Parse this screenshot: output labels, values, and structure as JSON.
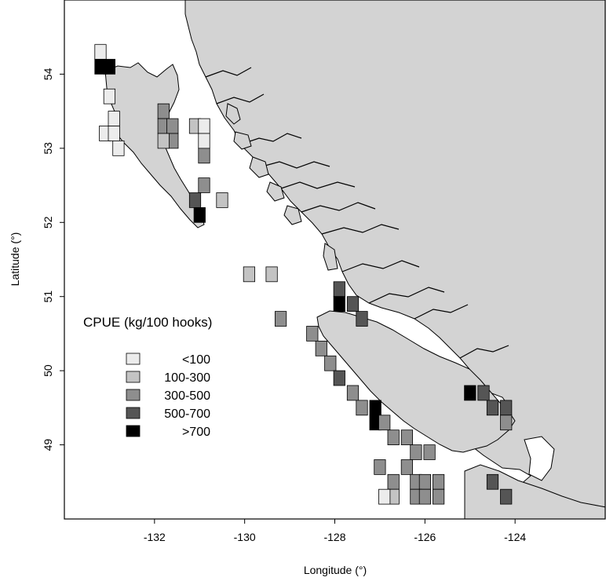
{
  "map": {
    "x_axis_title": "Longitude (°)",
    "y_axis_title": "Latitude (°)",
    "x_ticks": [
      {
        "value": -132,
        "label": "-132"
      },
      {
        "value": -130,
        "label": "-130"
      },
      {
        "value": -128,
        "label": "-128"
      },
      {
        "value": -126,
        "label": "-126"
      },
      {
        "value": -124,
        "label": "-124"
      }
    ],
    "y_ticks": [
      {
        "value": 54,
        "label": "54"
      },
      {
        "value": 53,
        "label": "53"
      },
      {
        "value": 52,
        "label": "52"
      },
      {
        "value": 51,
        "label": "51"
      },
      {
        "value": 50,
        "label": "50"
      },
      {
        "value": 49,
        "label": "49"
      }
    ],
    "land_color": "#d3d3d3",
    "water_color": "#ffffff",
    "legend": {
      "title": "CPUE (kg/100 hooks)",
      "items": [
        {
          "label": "<100",
          "color": "#ececec"
        },
        {
          "label": "100-300",
          "color": "#c3c3c3"
        },
        {
          "label": "300-500",
          "color": "#8e8e8e"
        },
        {
          "label": "500-700",
          "color": "#555555"
        },
        {
          "label": ">700",
          "color": "#000000"
        }
      ]
    }
  },
  "chart_data": {
    "type": "heatmap",
    "xlabel": "Longitude (°)",
    "ylabel": "Latitude (°)",
    "xlim": [
      -134,
      -122
    ],
    "ylim": [
      48,
      55
    ],
    "cell_size_deg": 0.25,
    "value_field": "cpue_class",
    "classes": [
      "<100",
      "100-300",
      "300-500",
      "500-700",
      ">700"
    ],
    "cells": [
      {
        "lon": -133.2,
        "lat": 54.3,
        "cpue_class": "<100"
      },
      {
        "lon": -133.2,
        "lat": 54.1,
        "cpue_class": ">700"
      },
      {
        "lon": -133.0,
        "lat": 54.1,
        "cpue_class": ">700"
      },
      {
        "lon": -133.0,
        "lat": 53.7,
        "cpue_class": "<100"
      },
      {
        "lon": -132.9,
        "lat": 53.4,
        "cpue_class": "<100"
      },
      {
        "lon": -133.1,
        "lat": 53.2,
        "cpue_class": "<100"
      },
      {
        "lon": -132.9,
        "lat": 53.2,
        "cpue_class": "<100"
      },
      {
        "lon": -132.8,
        "lat": 53.0,
        "cpue_class": "<100"
      },
      {
        "lon": -131.8,
        "lat": 53.5,
        "cpue_class": "300-500"
      },
      {
        "lon": -131.8,
        "lat": 53.3,
        "cpue_class": "300-500"
      },
      {
        "lon": -131.6,
        "lat": 53.3,
        "cpue_class": "300-500"
      },
      {
        "lon": -131.6,
        "lat": 53.1,
        "cpue_class": "300-500"
      },
      {
        "lon": -131.8,
        "lat": 53.1,
        "cpue_class": "100-300"
      },
      {
        "lon": -131.1,
        "lat": 53.3,
        "cpue_class": "100-300"
      },
      {
        "lon": -130.9,
        "lat": 53.3,
        "cpue_class": "<100"
      },
      {
        "lon": -130.9,
        "lat": 53.1,
        "cpue_class": "<100"
      },
      {
        "lon": -130.9,
        "lat": 52.9,
        "cpue_class": "300-500"
      },
      {
        "lon": -130.9,
        "lat": 52.5,
        "cpue_class": "300-500"
      },
      {
        "lon": -131.1,
        "lat": 52.3,
        "cpue_class": "500-700"
      },
      {
        "lon": -131.0,
        "lat": 52.1,
        "cpue_class": ">700"
      },
      {
        "lon": -130.5,
        "lat": 52.3,
        "cpue_class": "100-300"
      },
      {
        "lon": -129.9,
        "lat": 51.3,
        "cpue_class": "100-300"
      },
      {
        "lon": -129.4,
        "lat": 51.3,
        "cpue_class": "100-300"
      },
      {
        "lon": -129.2,
        "lat": 50.7,
        "cpue_class": "300-500"
      },
      {
        "lon": -127.9,
        "lat": 51.1,
        "cpue_class": "500-700"
      },
      {
        "lon": -127.9,
        "lat": 50.9,
        "cpue_class": ">700"
      },
      {
        "lon": -127.6,
        "lat": 50.9,
        "cpue_class": "500-700"
      },
      {
        "lon": -127.4,
        "lat": 50.7,
        "cpue_class": "500-700"
      },
      {
        "lon": -128.5,
        "lat": 50.5,
        "cpue_class": "300-500"
      },
      {
        "lon": -128.3,
        "lat": 50.3,
        "cpue_class": "300-500"
      },
      {
        "lon": -128.1,
        "lat": 50.1,
        "cpue_class": "300-500"
      },
      {
        "lon": -127.9,
        "lat": 49.9,
        "cpue_class": "500-700"
      },
      {
        "lon": -127.6,
        "lat": 49.7,
        "cpue_class": "300-500"
      },
      {
        "lon": -127.4,
        "lat": 49.5,
        "cpue_class": "300-500"
      },
      {
        "lon": -127.1,
        "lat": 49.5,
        "cpue_class": ">700"
      },
      {
        "lon": -127.1,
        "lat": 49.3,
        "cpue_class": ">700"
      },
      {
        "lon": -126.9,
        "lat": 49.3,
        "cpue_class": "300-500"
      },
      {
        "lon": -126.7,
        "lat": 49.1,
        "cpue_class": "300-500"
      },
      {
        "lon": -126.4,
        "lat": 49.1,
        "cpue_class": "300-500"
      },
      {
        "lon": -126.2,
        "lat": 48.9,
        "cpue_class": "300-500"
      },
      {
        "lon": -125.9,
        "lat": 48.9,
        "cpue_class": "300-500"
      },
      {
        "lon": -126.4,
        "lat": 48.7,
        "cpue_class": "300-500"
      },
      {
        "lon": -126.7,
        "lat": 48.5,
        "cpue_class": "300-500"
      },
      {
        "lon": -126.2,
        "lat": 48.5,
        "cpue_class": "300-500"
      },
      {
        "lon": -126.0,
        "lat": 48.5,
        "cpue_class": "300-500"
      },
      {
        "lon": -125.7,
        "lat": 48.5,
        "cpue_class": "300-500"
      },
      {
        "lon": -126.2,
        "lat": 48.3,
        "cpue_class": "300-500"
      },
      {
        "lon": -126.0,
        "lat": 48.3,
        "cpue_class": "300-500"
      },
      {
        "lon": -125.7,
        "lat": 48.3,
        "cpue_class": "300-500"
      },
      {
        "lon": -127.0,
        "lat": 48.7,
        "cpue_class": "300-500"
      },
      {
        "lon": -126.7,
        "lat": 48.3,
        "cpue_class": "100-300"
      },
      {
        "lon": -126.9,
        "lat": 48.3,
        "cpue_class": "<100"
      },
      {
        "lon": -125.0,
        "lat": 49.7,
        "cpue_class": ">700"
      },
      {
        "lon": -124.7,
        "lat": 49.7,
        "cpue_class": "500-700"
      },
      {
        "lon": -124.5,
        "lat": 49.5,
        "cpue_class": "500-700"
      },
      {
        "lon": -124.2,
        "lat": 49.5,
        "cpue_class": "500-700"
      },
      {
        "lon": -124.2,
        "lat": 49.3,
        "cpue_class": "300-500"
      },
      {
        "lon": -124.5,
        "lat": 48.5,
        "cpue_class": "500-700"
      },
      {
        "lon": -124.2,
        "lat": 48.3,
        "cpue_class": "500-700"
      }
    ]
  }
}
